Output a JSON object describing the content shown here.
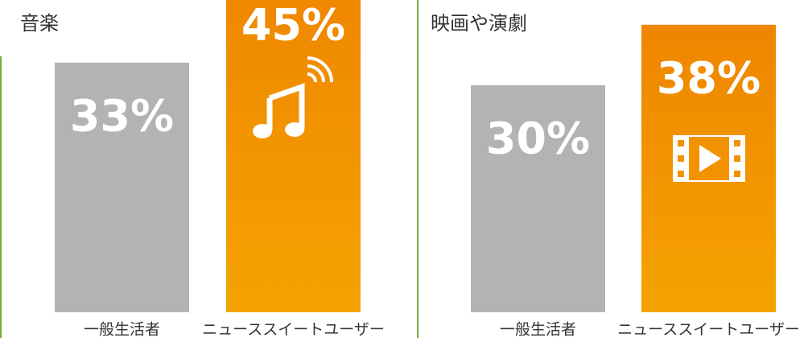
{
  "chart_data": [
    {
      "type": "bar",
      "title": "音楽",
      "categories": [
        "一般生活者",
        "ニューススイートユーザー"
      ],
      "values": [
        33,
        45
      ],
      "value_labels": [
        "33%",
        "45%"
      ],
      "colors": [
        "#b3b3b3",
        "#f08c00"
      ]
    },
    {
      "type": "bar",
      "title": "映画や演劇",
      "categories": [
        "一般生活者",
        "ニューススイートユーザー"
      ],
      "values": [
        30,
        38
      ],
      "value_labels": [
        "30%",
        "38%"
      ],
      "colors": [
        "#b3b3b3",
        "#f08c00"
      ]
    }
  ]
}
